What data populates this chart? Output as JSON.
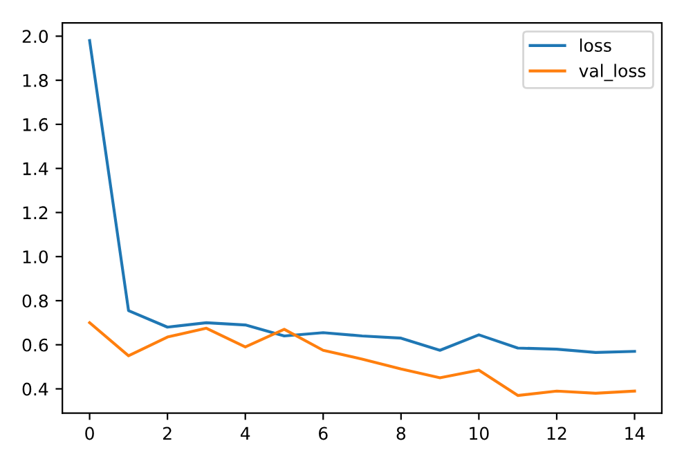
{
  "chart_data": {
    "type": "line",
    "x": [
      0,
      1,
      2,
      3,
      4,
      5,
      6,
      7,
      8,
      9,
      10,
      11,
      12,
      13,
      14
    ],
    "series": [
      {
        "name": "loss",
        "color": "#1f77b4",
        "values": [
          1.98,
          0.755,
          0.68,
          0.7,
          0.69,
          0.64,
          0.655,
          0.64,
          0.63,
          0.575,
          0.645,
          0.585,
          0.58,
          0.565,
          0.57
        ]
      },
      {
        "name": "val_loss",
        "color": "#ff7f0e",
        "values": [
          0.7,
          0.55,
          0.635,
          0.675,
          0.59,
          0.67,
          0.575,
          0.535,
          0.49,
          0.45,
          0.485,
          0.37,
          0.39,
          0.38,
          0.39
        ]
      }
    ],
    "xlim": [
      -0.7,
      14.7
    ],
    "ylim": [
      0.29,
      2.06
    ],
    "xticks": [
      0,
      2,
      4,
      6,
      8,
      10,
      12,
      14
    ],
    "yticks": [
      {
        "value": 0.4,
        "label": "0.4"
      },
      {
        "value": 0.6,
        "label": "0.6"
      },
      {
        "value": 0.8,
        "label": "0.8"
      },
      {
        "value": 1.0,
        "label": "1.0"
      },
      {
        "value": 1.2,
        "label": "1.2"
      },
      {
        "value": 1.4,
        "label": "1.4"
      },
      {
        "value": 1.6,
        "label": "1.6"
      },
      {
        "value": 1.8,
        "label": "1.8"
      },
      {
        "value": 2.0,
        "label": "2.0"
      }
    ],
    "legend": "top right",
    "grid": false
  }
}
